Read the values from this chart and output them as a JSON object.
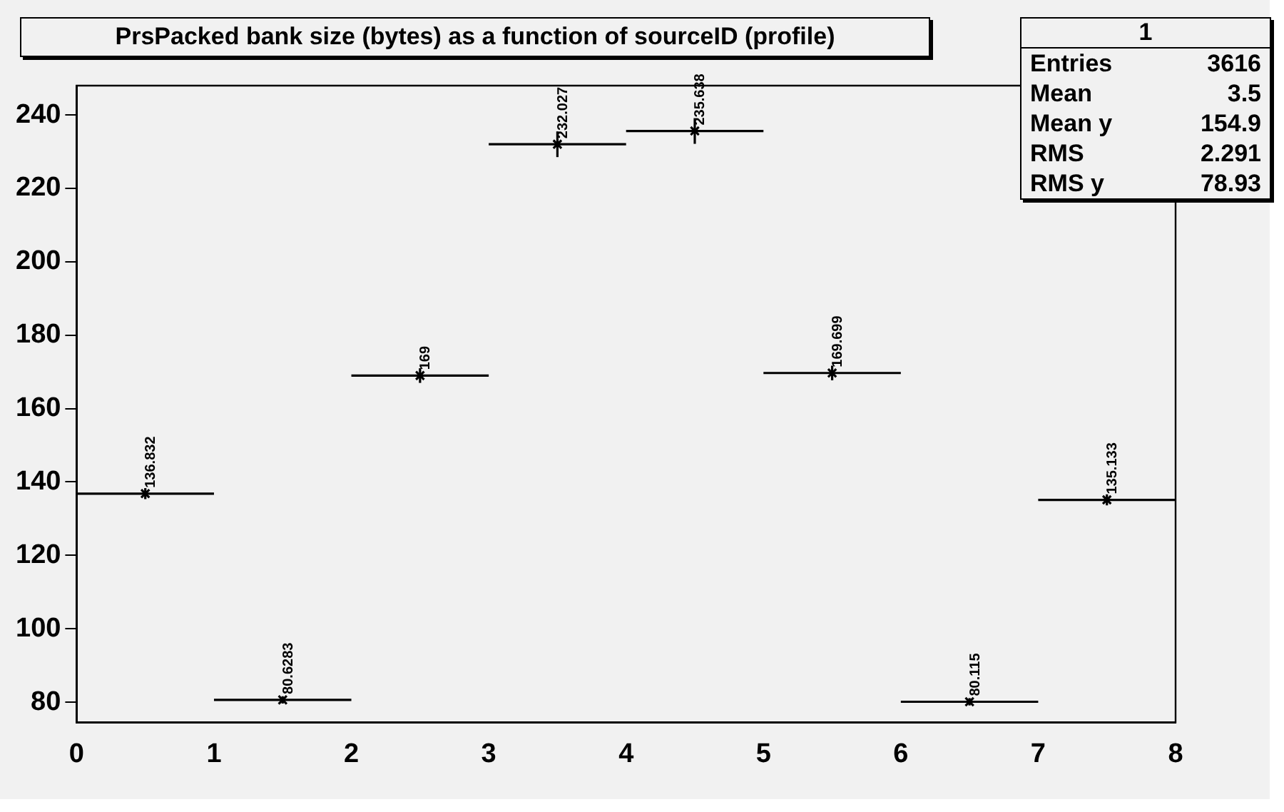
{
  "chart_data": {
    "type": "scatter",
    "title": "PrsPacked bank size (bytes) as a function of sourceID (profile)",
    "x": [
      0.5,
      1.5,
      2.5,
      3.5,
      4.5,
      5.5,
      6.5,
      7.5
    ],
    "values": [
      136.832,
      80.6283,
      169,
      232.027,
      235.638,
      169.699,
      80.115,
      135.133
    ],
    "errors": [
      1.5,
      1,
      2,
      3.5,
      3.5,
      2,
      1,
      1.5
    ],
    "xerrors": [
      0.5,
      0.5,
      0.5,
      0.5,
      0.5,
      0.5,
      0.5,
      0.5
    ],
    "color": "#000000",
    "marker": "cross",
    "data_labels": true,
    "grid": false,
    "legend": false,
    "xlim": [
      0,
      8
    ],
    "xticks": [
      0,
      1,
      2,
      3,
      4,
      5,
      6,
      7,
      8
    ],
    "ylim": [
      74.5,
      248
    ],
    "yticks": [
      80,
      100,
      120,
      140,
      160,
      180,
      200,
      220,
      240
    ],
    "annotations": [
      "1",
      "Entries 3616",
      "Mean 3.5",
      "Mean y 154.9",
      "RMS 2.291",
      "RMS y 78.93"
    ]
  }
}
